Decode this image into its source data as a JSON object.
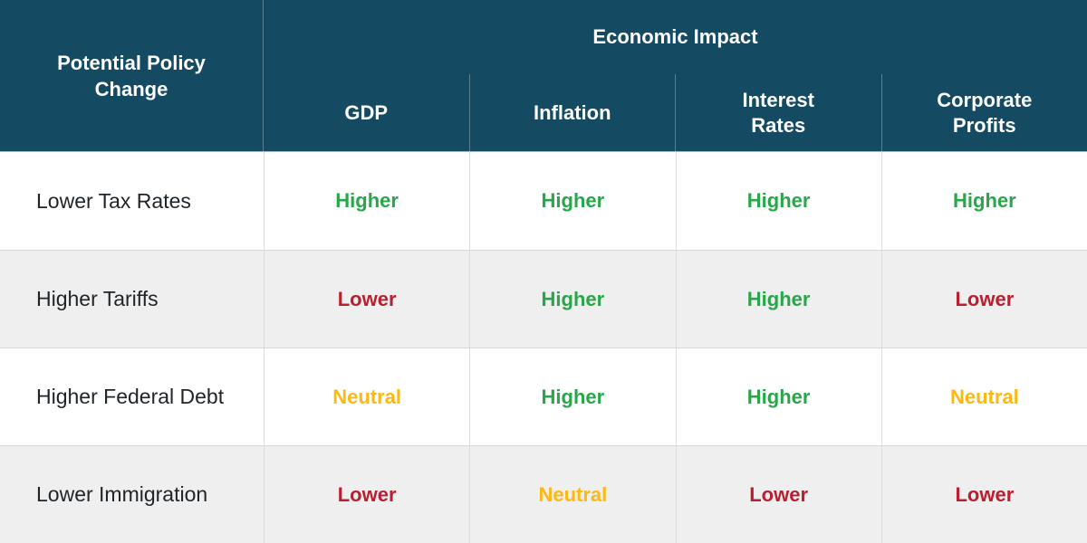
{
  "colors": {
    "header_bg": "#154a63",
    "header_text": "#ffffff",
    "row_bg": "#ffffff",
    "row_alt_bg": "#efefef",
    "label_text": "#1f2428",
    "positive": "#27a74a",
    "negative": "#b91f30",
    "neutral": "#fcb813"
  },
  "chart_data": {
    "type": "table",
    "row_header_label": "Potential Policy Change",
    "group_header": "Economic Impact",
    "columns": [
      "GDP",
      "Inflation",
      "Interest Rates",
      "Corporate Profits"
    ],
    "rows": [
      {
        "label": "Lower Tax Rates",
        "values": [
          {
            "text": "Higher",
            "status": "positive"
          },
          {
            "text": "Higher",
            "status": "positive"
          },
          {
            "text": "Higher",
            "status": "positive"
          },
          {
            "text": "Higher",
            "status": "positive"
          }
        ]
      },
      {
        "label": "Higher Tariffs",
        "values": [
          {
            "text": "Lower",
            "status": "negative"
          },
          {
            "text": "Higher",
            "status": "positive"
          },
          {
            "text": "Higher",
            "status": "positive"
          },
          {
            "text": "Lower",
            "status": "negative"
          }
        ]
      },
      {
        "label": "Higher Federal Debt",
        "values": [
          {
            "text": "Neutral",
            "status": "neutral"
          },
          {
            "text": "Higher",
            "status": "positive"
          },
          {
            "text": "Higher",
            "status": "positive"
          },
          {
            "text": "Neutral",
            "status": "neutral"
          }
        ]
      },
      {
        "label": "Lower Immigration",
        "values": [
          {
            "text": "Lower",
            "status": "negative"
          },
          {
            "text": "Neutral",
            "status": "neutral"
          },
          {
            "text": "Lower",
            "status": "negative"
          },
          {
            "text": "Lower",
            "status": "negative"
          }
        ]
      }
    ]
  }
}
